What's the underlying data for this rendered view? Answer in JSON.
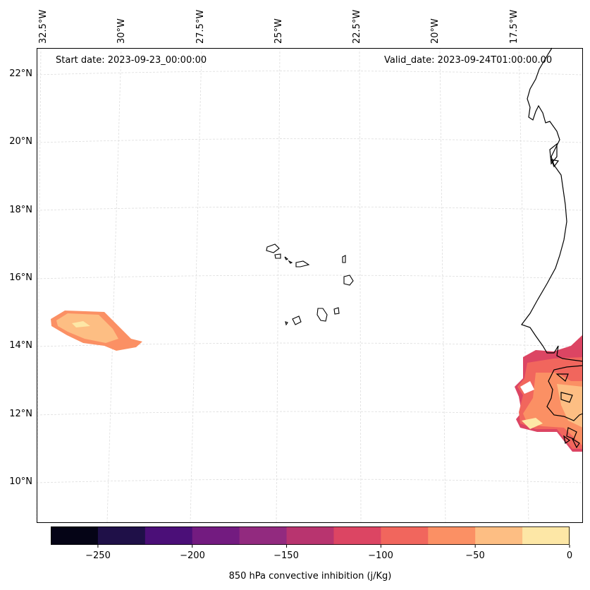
{
  "map": {
    "start_date": "Start date: 2023-09-23_00:00:00",
    "valid_date": "Valid_date: 2023-09-24T01:00:00.00",
    "lon_labels": [
      "32.5°W",
      "30°W",
      "27.5°W",
      "25°W",
      "22.5°W",
      "20°W",
      "17.5°W"
    ],
    "lat_labels": [
      "22°N",
      "20°N",
      "18°N",
      "16°N",
      "14°N",
      "12°N",
      "10°N"
    ]
  },
  "colorbar": {
    "label": "850 hPa convective inhibition (j/Kg)",
    "ticks": [
      "−250",
      "−200",
      "−150",
      "−100",
      "−50",
      "0"
    ],
    "range": [
      -275,
      0
    ],
    "colors": [
      "#050416",
      "#1f1048",
      "#4b0f78",
      "#731b80",
      "#922a7f",
      "#b8346f",
      "#dc4563",
      "#f1665d",
      "#fb9064",
      "#fdbe83",
      "#fde7a6"
    ]
  }
}
